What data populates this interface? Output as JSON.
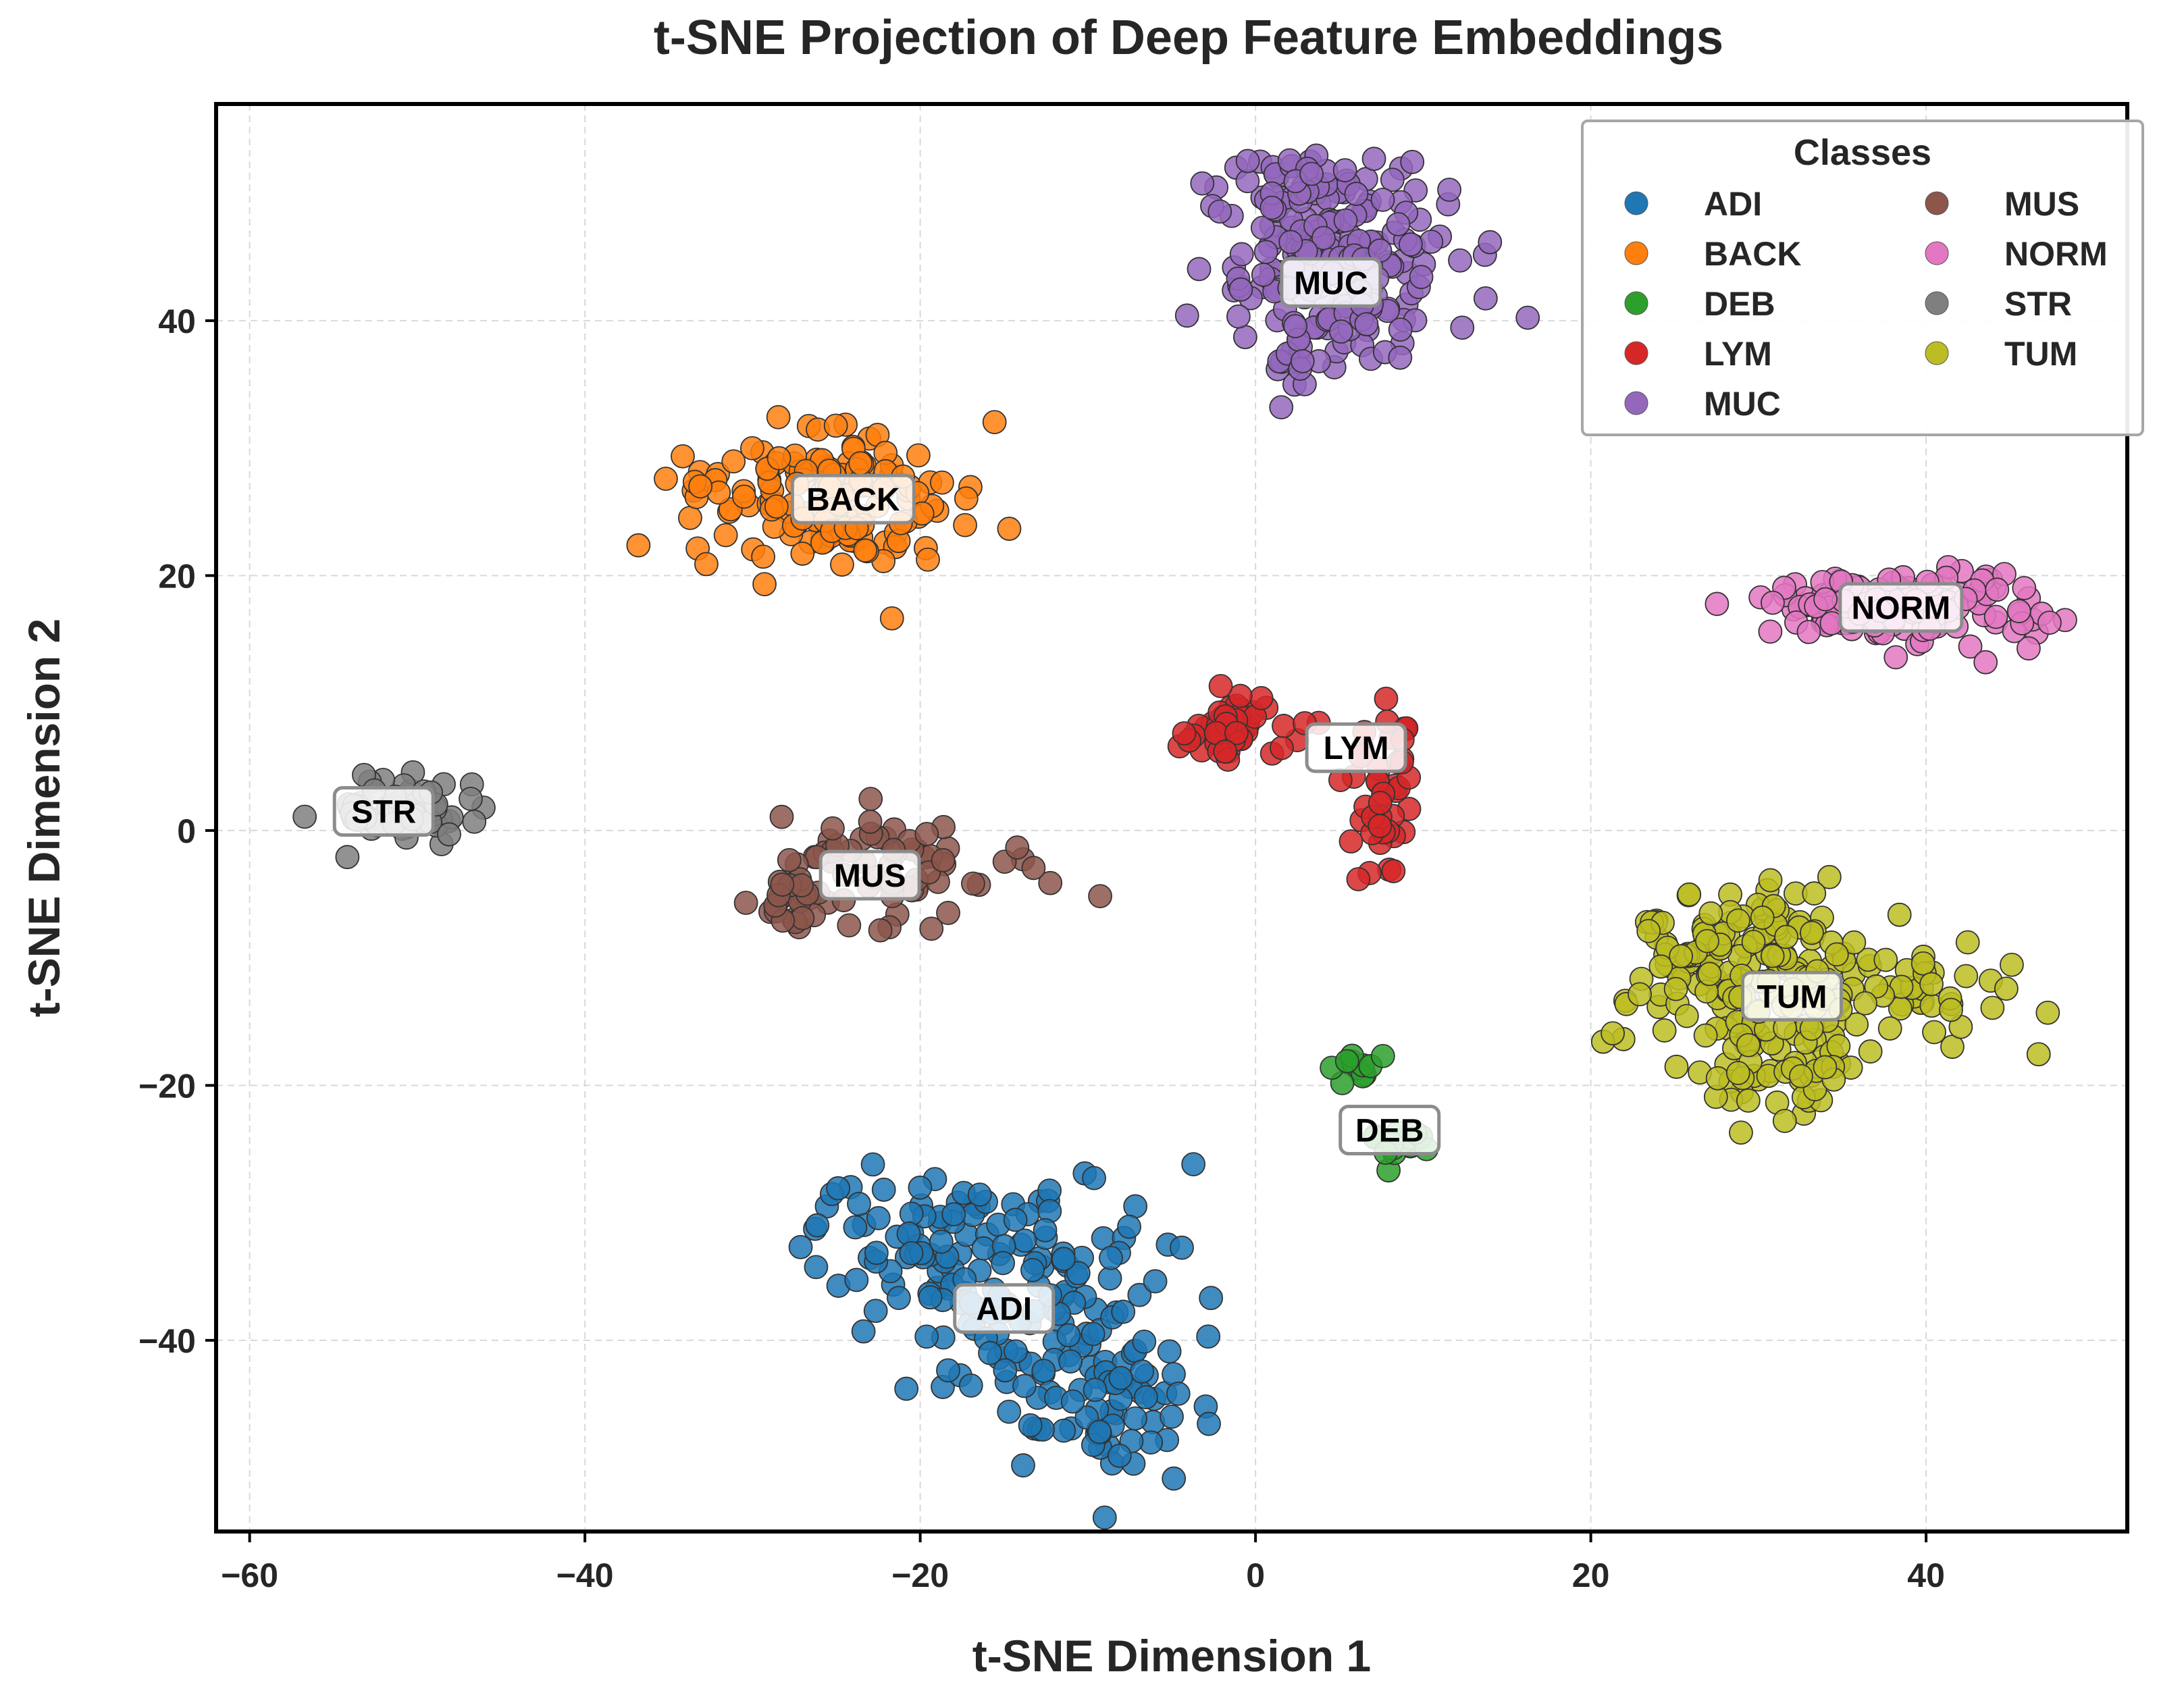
{
  "chart_data": {
    "type": "scatter",
    "title": "t-SNE Projection of Deep Feature Embeddings",
    "xlabel": "t-SNE Dimension 1",
    "ylabel": "t-SNE Dimension 2",
    "xlim": [
      -62,
      52
    ],
    "ylim": [
      -55,
      57
    ],
    "xticks": [
      -60,
      -40,
      -20,
      0,
      20,
      40
    ],
    "yticks": [
      -40,
      -20,
      0,
      20,
      40
    ],
    "xtick_labels": [
      "−60",
      "−40",
      "−20",
      "0",
      "20",
      "40"
    ],
    "ytick_labels": [
      "−40",
      "−20",
      "0",
      "20",
      "40"
    ],
    "grid": true,
    "legend": {
      "title": "Classes",
      "placement": "top-right",
      "entries": [
        "ADI",
        "BACK",
        "DEB",
        "LYM",
        "MUC",
        "MUS",
        "NORM",
        "STR",
        "TUM"
      ]
    },
    "marker_edge_color": "#333333",
    "clusters": [
      {
        "name": "ADI",
        "color": "#1f77b4",
        "label_pos": [
          -15,
          -37.5
        ],
        "n": 230,
        "seed": 11,
        "blobs": [
          {
            "cx": -17,
            "cy": -33,
            "sx": 4.5,
            "sy": 3.0,
            "w": 0.4
          },
          {
            "cx": -12,
            "cy": -40,
            "sx": 4.0,
            "sy": 4.0,
            "w": 0.35
          },
          {
            "cx": -9,
            "cy": -45,
            "sx": 2.5,
            "sy": 3.0,
            "w": 0.25
          }
        ]
      },
      {
        "name": "BACK",
        "color": "#ff7f0e",
        "label_pos": [
          -24,
          26
        ],
        "n": 160,
        "seed": 22,
        "blobs": [
          {
            "cx": -25,
            "cy": 26,
            "sx": 4.0,
            "sy": 2.8,
            "w": 1.0
          }
        ]
      },
      {
        "name": "DEB",
        "color": "#2ca02c",
        "label_pos": [
          8,
          -23.5
        ],
        "n": 30,
        "seed": 33,
        "blobs": [
          {
            "cx": 5.5,
            "cy": -18.5,
            "sx": 0.8,
            "sy": 0.7,
            "w": 0.5
          },
          {
            "cx": 8.5,
            "cy": -24.5,
            "sx": 1.0,
            "sy": 0.8,
            "w": 0.5
          }
        ]
      },
      {
        "name": "LYM",
        "color": "#d62728",
        "label_pos": [
          6,
          6.5
        ],
        "n": 90,
        "seed": 44,
        "blobs": [
          {
            "cx": -1.5,
            "cy": 8,
            "sx": 1.8,
            "sy": 1.5,
            "w": 0.55
          },
          {
            "cx": 7.5,
            "cy": 3,
            "sx": 1.0,
            "sy": 3.0,
            "w": 0.45
          }
        ]
      },
      {
        "name": "MUC",
        "color": "#9467bd",
        "label_pos": [
          4.5,
          43
        ],
        "n": 230,
        "seed": 55,
        "blobs": [
          {
            "cx": 5,
            "cy": 43,
            "sx": 3.5,
            "sy": 4.0,
            "w": 0.8
          },
          {
            "cx": 3,
            "cy": 50,
            "sx": 3.0,
            "sy": 1.2,
            "w": 0.2
          }
        ]
      },
      {
        "name": "MUS",
        "color": "#8c564b",
        "label_pos": [
          -23,
          -3.5
        ],
        "n": 90,
        "seed": 66,
        "blobs": [
          {
            "cx": -22,
            "cy": -3,
            "sx": 3.5,
            "sy": 1.8,
            "w": 0.75
          },
          {
            "cx": -27.5,
            "cy": -5.5,
            "sx": 0.8,
            "sy": 1.2,
            "w": 0.25
          }
        ]
      },
      {
        "name": "NORM",
        "color": "#e377c2",
        "label_pos": [
          38.5,
          17.5
        ],
        "n": 130,
        "seed": 77,
        "blobs": [
          {
            "cx": 38.5,
            "cy": 17.5,
            "sx": 4.5,
            "sy": 1.5,
            "w": 1.0
          }
        ]
      },
      {
        "name": "STR",
        "color": "#7f7f7f",
        "label_pos": [
          -52,
          1.5
        ],
        "n": 60,
        "seed": 88,
        "blobs": [
          {
            "cx": -51,
            "cy": 1.5,
            "sx": 2.5,
            "sy": 1.4,
            "w": 1.0
          }
        ]
      },
      {
        "name": "TUM",
        "color": "#bcbd22",
        "label_pos": [
          32,
          -13
        ],
        "n": 260,
        "seed": 99,
        "blobs": [
          {
            "cx": 29,
            "cy": -10,
            "sx": 3.5,
            "sy": 3.0,
            "w": 0.55
          },
          {
            "cx": 31,
            "cy": -18,
            "sx": 2.5,
            "sy": 2.5,
            "w": 0.25
          },
          {
            "cx": 39,
            "cy": -13,
            "sx": 3.5,
            "sy": 2.0,
            "w": 0.2
          }
        ]
      }
    ]
  }
}
